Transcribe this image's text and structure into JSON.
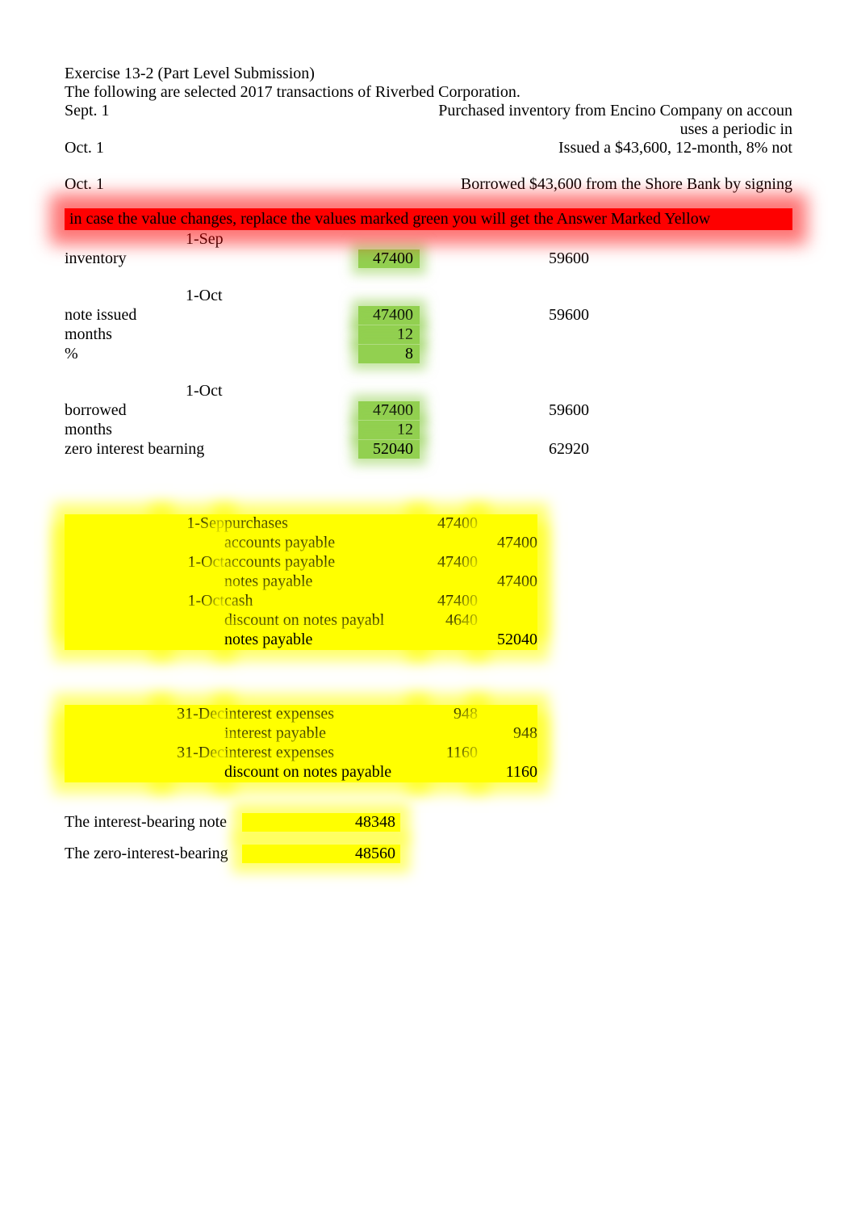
{
  "header": {
    "title": "Exercise 13-2 (Part Level Submission)",
    "intro": "The following are selected 2017 transactions of Riverbed Corporation."
  },
  "problem_rows": [
    {
      "date": "Sept. 1",
      "text": "Purchased inventory from Encino Company on accoun"
    },
    {
      "date": "",
      "text": "uses a periodic in"
    },
    {
      "date": "Oct. 1",
      "text": "Issued a $43,600, 12-month, 8% not"
    },
    {
      "date": "",
      "text": ""
    },
    {
      "date": "Oct. 1",
      "text": "Borrowed $43,600 from the Shore Bank by signing"
    }
  ],
  "banner": "in case the value changes, replace the values marked green you will get the Answer Marked Yellow",
  "inputs": {
    "sections": [
      {
        "date_label": "1-Sep",
        "lines": [
          {
            "label": "inventory",
            "green": "47400",
            "right": "59600"
          }
        ]
      },
      {
        "date_label": "1-Oct",
        "lines": [
          {
            "label": "note issued",
            "green": "47400",
            "right": "59600"
          },
          {
            "label": "months",
            "green": "12",
            "right": ""
          },
          {
            "label": "%",
            "green": "8",
            "right": ""
          }
        ]
      },
      {
        "date_label": "1-Oct",
        "lines": [
          {
            "label": "borrowed",
            "green": "47400",
            "right": "59600"
          },
          {
            "label": "months",
            "green": "12",
            "right": ""
          },
          {
            "label": "zero interest bearning",
            "green": "52040",
            "right": "62920"
          }
        ]
      }
    ]
  },
  "journal1": [
    {
      "date": "1-Sep",
      "account": "purchases",
      "debit": "47400",
      "credit": ""
    },
    {
      "date": "",
      "account": "accounts payable",
      "debit": "",
      "credit": "47400"
    },
    {
      "date": "1-Oct",
      "account": "accounts payable",
      "debit": "47400",
      "credit": ""
    },
    {
      "date": "",
      "account": "notes payable",
      "debit": "",
      "credit": "47400"
    },
    {
      "date": "1-Oct",
      "account": "cash",
      "debit": "47400",
      "credit": ""
    },
    {
      "date": "",
      "account": "discount on notes payabl",
      "debit": "4640",
      "credit": ""
    },
    {
      "date": "",
      "account": "notes payable",
      "debit": "",
      "credit": "52040"
    }
  ],
  "journal2": [
    {
      "date": "31-Dec",
      "account": "interest expenses",
      "debit": "948",
      "credit": ""
    },
    {
      "date": "",
      "account": "interest payable",
      "debit": "",
      "credit": "948"
    },
    {
      "date": "31-Dec",
      "account": "interest expenses",
      "debit": "1160",
      "credit": ""
    },
    {
      "date": "",
      "account": "discount on notes payable",
      "debit": "",
      "credit": "1160"
    }
  ],
  "notes": [
    {
      "label": "The interest-bearing note",
      "value": "48348"
    },
    {
      "label": "The zero-interest-bearing",
      "value": "48560"
    }
  ],
  "colors": {
    "green": "#92d050",
    "yellow": "#ffff00",
    "red": "#fe0000",
    "text": "#000000",
    "background": "#ffffff"
  }
}
